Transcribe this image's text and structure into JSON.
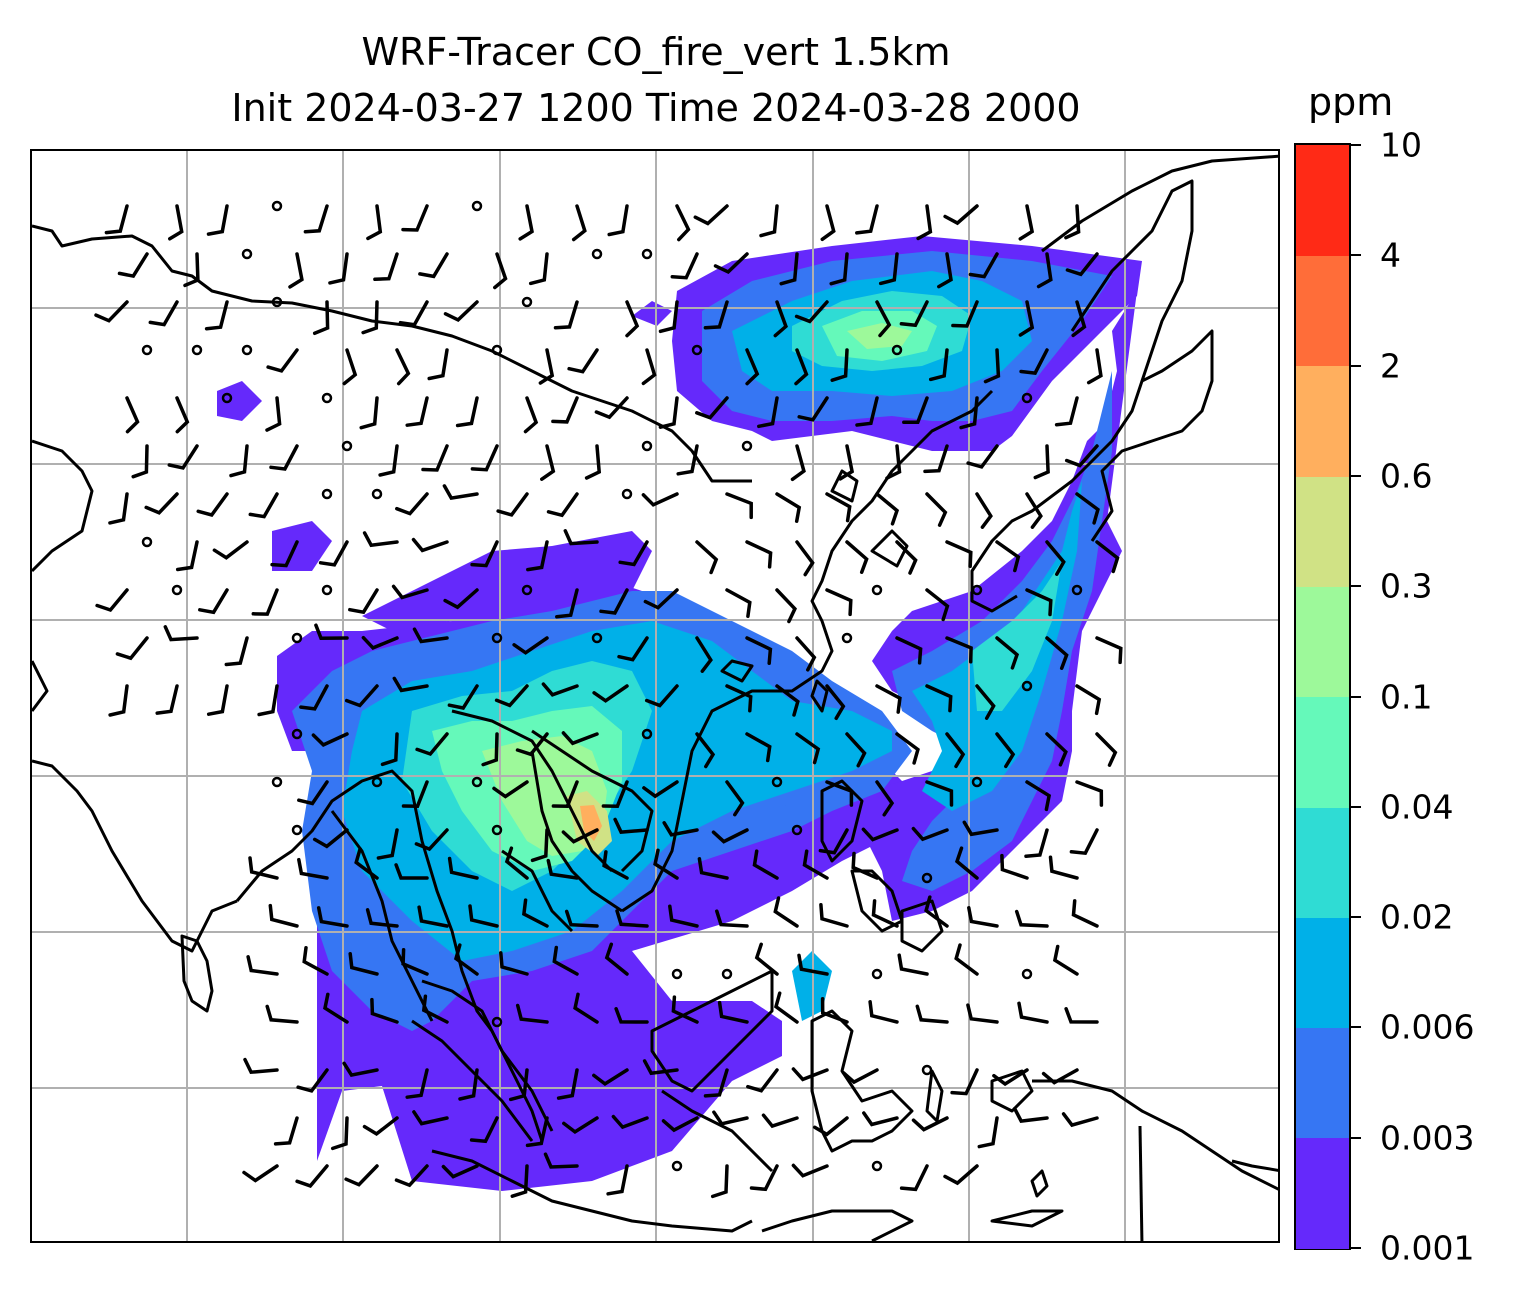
{
  "title": {
    "line1": "WRF-Tracer CO_fire_vert 1.5km",
    "line2": "Init 2024-03-27 1200 Time 2024-03-28 2000"
  },
  "colorbar": {
    "unit": "ppm",
    "levels": [
      "0.001",
      "0.003",
      "0.006",
      "0.02",
      "0.04",
      "0.1",
      "0.3",
      "0.6",
      "2",
      "4",
      "10"
    ],
    "colors": [
      "#6529fb",
      "#3676f3",
      "#00b0e8",
      "#2fdcd4",
      "#65f9ba",
      "#9df99a",
      "#d0e285",
      "#ffaf5e",
      "#ff6d39",
      "#ff2a16"
    ]
  },
  "map": {
    "gridlines": "on",
    "wind_barbs": "on",
    "coastlines": "on",
    "tracer_color_scale": "rainbow"
  }
}
